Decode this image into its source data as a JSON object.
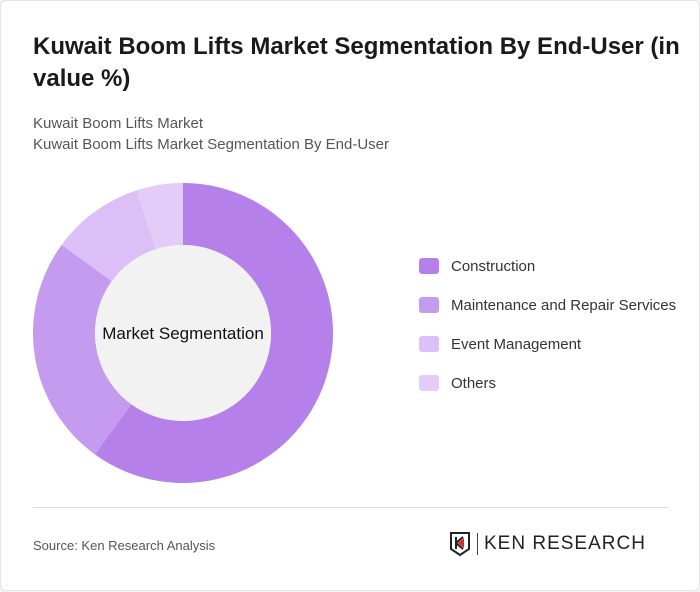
{
  "title": "Kuwait Boom Lifts Market Segmentation By End-User (in value %)",
  "subtitle1": "Kuwait Boom Lifts Market",
  "subtitle2": "Kuwait Boom Lifts Market Segmentation By End-User",
  "source": "Source: Ken Research Analysis",
  "logo_text": "KEN RESEARCH",
  "chart_data": {
    "type": "pie",
    "variant": "donut",
    "center_label": "Market Segmentation",
    "categories": [
      "Construction",
      "Maintenance and Repair Services",
      "Event Management",
      "Others"
    ],
    "values": [
      60,
      25,
      10,
      5
    ],
    "colors": [
      "#b580ea",
      "#c49bee",
      "#dbbff6",
      "#e3ccf8"
    ],
    "legend": "right"
  }
}
